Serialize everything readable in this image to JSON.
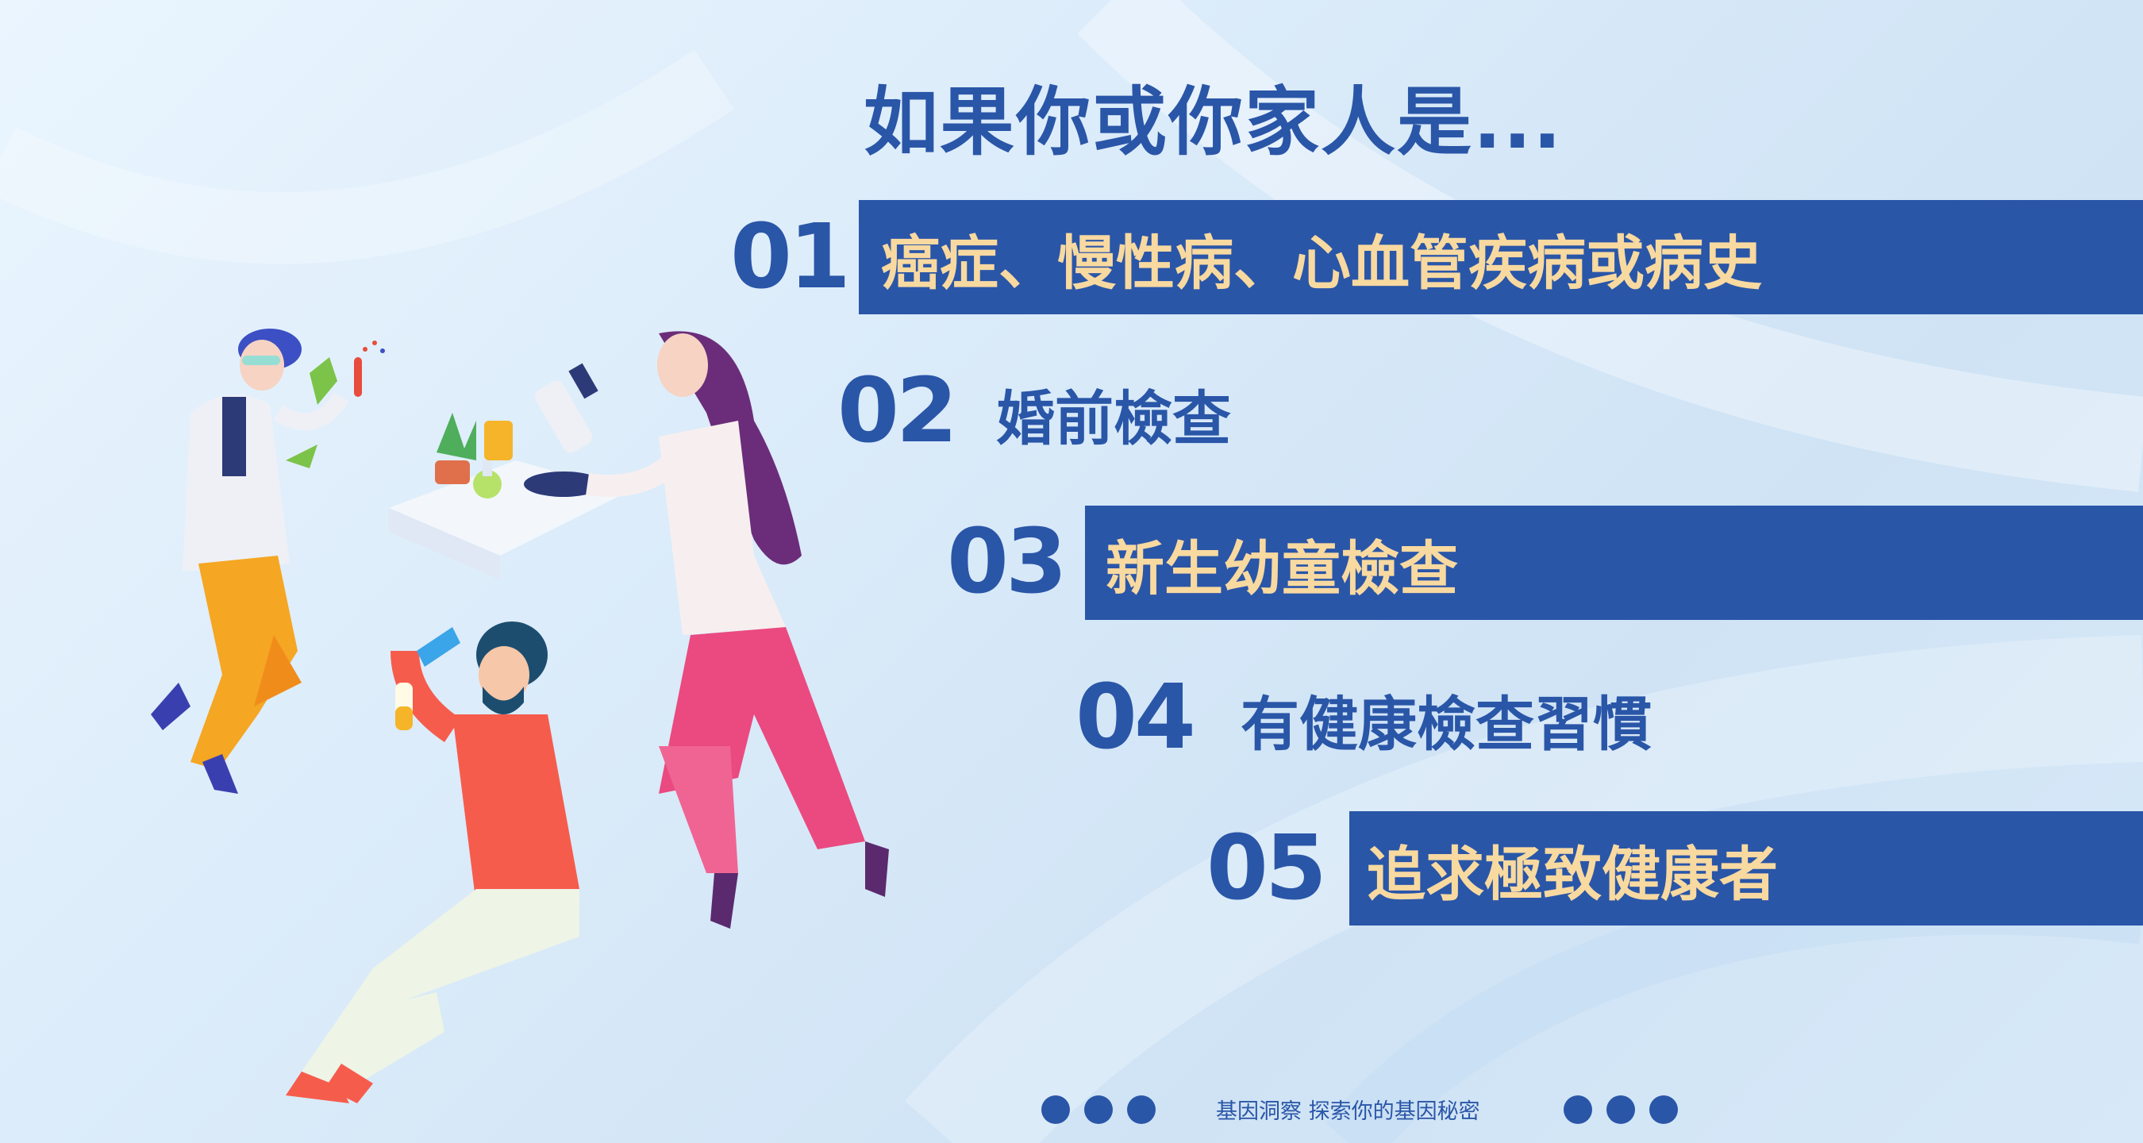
{
  "title": "如果你或你家人是...",
  "items": [
    {
      "number": "01",
      "label": "癌症、慢性病、心血管疾病或病史",
      "highlighted": true
    },
    {
      "number": "02",
      "label": "婚前檢查",
      "highlighted": false
    },
    {
      "number": "03",
      "label": "新生幼童檢查",
      "highlighted": true
    },
    {
      "number": "04",
      "label": "有健康檢查習慣",
      "highlighted": false
    },
    {
      "number": "05",
      "label": "追求極致健康者",
      "highlighted": true
    }
  ],
  "footer": {
    "text": "基因洞察 探索你的基因秘密"
  },
  "colors": {
    "primary": "#2a56a8",
    "highlight_text": "#f8d9a0",
    "background": "#dcecfa"
  },
  "illustration": {
    "description_icon": "scientists-lab-illustration"
  }
}
